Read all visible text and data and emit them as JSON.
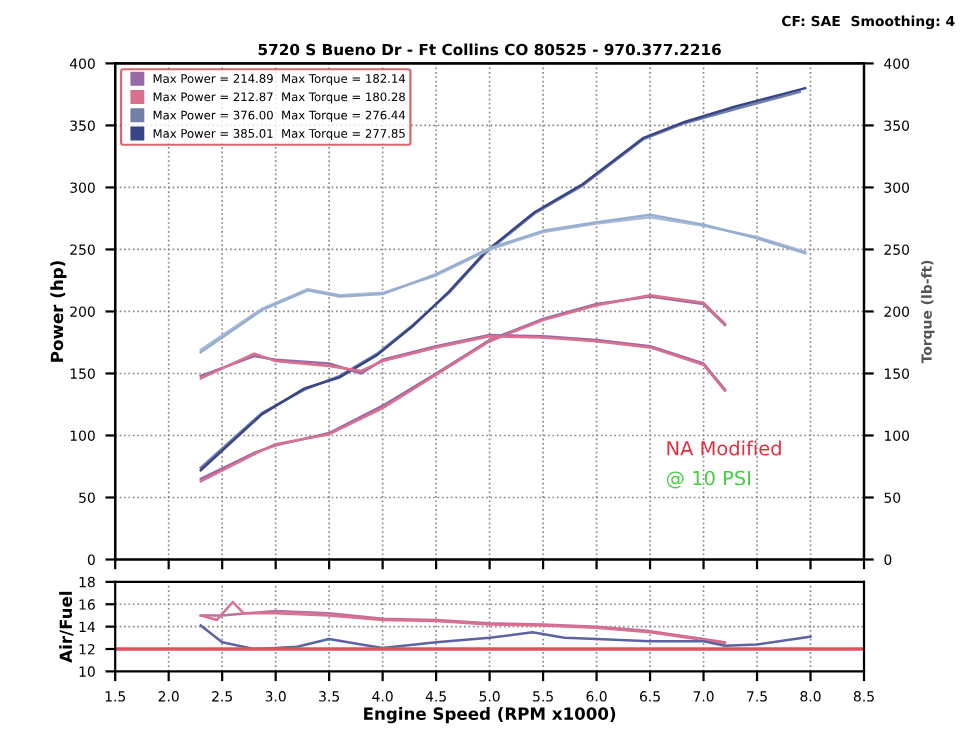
{
  "chart_data": [
    {
      "type": "line",
      "subtitle": "5720 S Bueno Dr - Ft Collins CO 80525 - 970.377.2216",
      "annotations": [
        "CF: SAE  Smoothing: 4",
        "NA Modified",
        "@ 10 PSI"
      ],
      "ylabel": "Power (hp)",
      "y2label": "Torque (lb-ft)",
      "xlim": [
        1.5,
        8.5
      ],
      "xticks": [
        1.5,
        2,
        2.5,
        3,
        3.5,
        4,
        4.5,
        5,
        5.5,
        6,
        6.5,
        7,
        7.5,
        8,
        8.5
      ],
      "ylim": [
        0,
        400
      ],
      "yticks": [
        0,
        50,
        100,
        150,
        200,
        250,
        300,
        350,
        400
      ],
      "y2lim": [
        0,
        400
      ],
      "y2ticks": [
        0,
        50,
        100,
        150,
        200,
        250,
        300,
        350,
        400
      ],
      "tick_labels": "y",
      "grid": true,
      "legend": "top left",
      "marker": "none",
      "line_style": "solid",
      "series": [
        {
          "name": "Max Power = 214.89  Max Torque = 182.14",
          "color": "#9a6aa8",
          "x": [
            2.3,
            2.8,
            3.0,
            3.5,
            4.0,
            4.5,
            5.0,
            5.5,
            6.0,
            6.5,
            7.0,
            7.2
          ],
          "values": [
            65,
            86,
            92,
            102,
            124,
            150,
            177,
            194,
            206,
            212,
            206,
            189
          ]
        },
        {
          "color": "#9a6aa8",
          "axis": "y2",
          "x": [
            2.3,
            2.8,
            3.0,
            3.5,
            3.8,
            4.0,
            4.5,
            5.0,
            5.5,
            6.0,
            6.5,
            7.0,
            7.2
          ],
          "values": [
            148,
            164,
            161,
            158,
            150,
            161,
            172,
            181,
            180,
            177,
            172,
            158,
            137
          ]
        },
        {
          "name": "Max Power = 212.87  Max Torque = 180.28",
          "color": "#d9708e",
          "x": [
            2.3,
            2.8,
            3.0,
            3.5,
            4.0,
            4.5,
            5.0,
            5.5,
            6.0,
            6.5,
            7.0,
            7.2
          ],
          "values": [
            63,
            85,
            93,
            101,
            122,
            149,
            176,
            193,
            205,
            213,
            207,
            190
          ]
        },
        {
          "color": "#d9708e",
          "axis": "y2",
          "x": [
            2.3,
            2.8,
            3.0,
            3.5,
            3.8,
            4.0,
            4.5,
            5.0,
            5.5,
            6.0,
            6.5,
            7.0,
            7.2
          ],
          "values": [
            146,
            166,
            160,
            156,
            152,
            160,
            171,
            180,
            179,
            176,
            171,
            157,
            136
          ]
        },
        {
          "name": "Max Power = 376.00  Max Torque = 276.44",
          "color": "#7080a8",
          "x": [
            2.3,
            2.87,
            3.27,
            3.6,
            3.95,
            4.28,
            4.62,
            4.96,
            5.42,
            5.86,
            6.44,
            6.83,
            7.29,
            7.9
          ],
          "values": [
            74,
            118,
            137,
            148,
            166,
            189,
            215,
            247,
            279,
            301,
            339,
            352,
            363,
            377
          ]
        },
        {
          "color": "#a8bcd8",
          "axis": "y2",
          "x": [
            2.3,
            2.87,
            3.3,
            3.6,
            4.0,
            4.5,
            5.0,
            5.5,
            6.0,
            6.5,
            7.0,
            7.5,
            7.95
          ],
          "values": [
            169,
            202,
            218,
            213,
            215,
            229,
            250,
            264,
            271,
            276,
            269,
            260,
            248
          ]
        },
        {
          "name": "Max Power = 385.01  Max Torque = 277.85",
          "color": "#3a4488",
          "x": [
            2.3,
            2.87,
            3.27,
            3.6,
            3.95,
            4.28,
            4.62,
            4.96,
            5.42,
            5.86,
            6.44,
            6.83,
            7.29,
            7.95
          ],
          "values": [
            72,
            117,
            138,
            147,
            165,
            188,
            216,
            248,
            280,
            302,
            340,
            353,
            365,
            380
          ]
        },
        {
          "color": "#98aed0",
          "axis": "y2",
          "x": [
            2.3,
            2.87,
            3.3,
            3.6,
            4.0,
            4.5,
            5.0,
            5.5,
            6.0,
            6.5,
            7.0,
            7.5,
            7.95
          ],
          "values": [
            167,
            201,
            217,
            212,
            214,
            230,
            251,
            265,
            272,
            278,
            270,
            259,
            247
          ]
        }
      ]
    },
    {
      "type": "line",
      "xlabel": "Engine Speed (RPM x1000)",
      "ylabel": "Air/Fuel",
      "xlim": [
        1.5,
        8.5
      ],
      "xticks": [
        1.5,
        {
          "value": 2,
          "label": "2.0"
        },
        2.5,
        {
          "value": 3,
          "label": "3.0"
        },
        3.5,
        {
          "value": 4,
          "label": "4.0"
        },
        4.5,
        {
          "value": 5,
          "label": "5.0"
        },
        5.5,
        {
          "value": 6,
          "label": "6.0"
        },
        6.5,
        {
          "value": 7,
          "label": "7.0"
        },
        7.5,
        {
          "value": 8,
          "label": "8.0"
        },
        8.5
      ],
      "ylim": [
        10,
        18
      ],
      "yticks": [
        10,
        12,
        14,
        16,
        18
      ],
      "grid": true,
      "marker": "none",
      "line_style": "solid",
      "ref_lines": [
        {
          "axis": "y",
          "value": 12,
          "color": "#e05060"
        }
      ],
      "series": [
        {
          "color": "#c070a0",
          "x": [
            2.3,
            2.5,
            3.0,
            3.5,
            4.0,
            4.5,
            5.0,
            5.5,
            6.0,
            6.5,
            7.0,
            7.2
          ],
          "values": [
            15.0,
            15.0,
            15.4,
            15.2,
            14.7,
            14.6,
            14.3,
            14.2,
            14.0,
            13.6,
            12.9,
            12.6
          ]
        },
        {
          "color": "#d9708e",
          "x": [
            2.3,
            2.45,
            2.6,
            2.7,
            3.0,
            3.5,
            4.0,
            4.5,
            5.0,
            5.5,
            6.0,
            6.5,
            7.0,
            7.2
          ],
          "values": [
            15.0,
            14.6,
            16.2,
            15.2,
            15.2,
            15.0,
            14.6,
            14.5,
            14.2,
            14.1,
            13.9,
            13.5,
            12.8,
            12.5
          ]
        },
        {
          "color": "#5a64a0",
          "x": [
            2.3,
            2.5,
            2.8,
            3.0,
            3.2,
            3.5,
            3.8,
            4.0,
            4.5,
            5.0,
            5.4,
            5.7,
            6.0,
            6.5,
            7.0,
            7.2,
            7.5,
            8.0
          ],
          "values": [
            14.1,
            12.6,
            12.0,
            12.1,
            12.2,
            12.9,
            12.4,
            12.1,
            12.6,
            13.0,
            13.5,
            13.0,
            12.9,
            12.7,
            12.7,
            12.3,
            12.4,
            13.1
          ]
        }
      ]
    }
  ]
}
